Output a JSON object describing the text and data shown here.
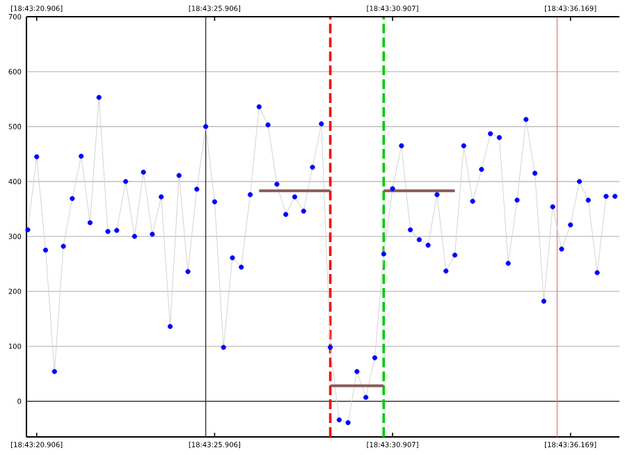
{
  "chart_data": {
    "type": "line",
    "categories": [
      null,
      "[18:43:20.906]",
      null,
      null,
      null,
      null,
      null,
      null,
      null,
      null,
      null,
      null,
      null,
      null,
      null,
      null,
      null,
      null,
      null,
      null,
      null,
      "[18:43:25.906]",
      null,
      null,
      null,
      null,
      null,
      null,
      null,
      null,
      null,
      null,
      null,
      null,
      null,
      null,
      null,
      null,
      null,
      null,
      null,
      "[18:43:30.907]",
      null,
      null,
      null,
      null,
      null,
      null,
      null,
      null,
      null,
      null,
      null,
      null,
      null,
      null,
      null,
      null,
      null,
      null,
      null,
      "[18:43:36.169]",
      null,
      null,
      null,
      null,
      null
    ],
    "ylim": [
      -65,
      700
    ],
    "yticks": [
      0,
      100,
      200,
      300,
      400,
      500,
      600,
      700
    ],
    "grid": "y",
    "series": [
      {
        "color": "#d4d4d4",
        "marker": "none",
        "values": [
          312,
          445,
          275,
          54,
          282,
          369,
          446,
          325,
          553,
          309,
          311,
          400,
          300,
          417,
          304,
          372,
          136,
          411,
          236,
          386,
          500,
          363,
          98,
          261,
          244,
          376,
          536,
          503,
          395,
          340,
          372,
          346,
          426,
          505,
          98,
          -34,
          -39,
          54,
          7,
          79,
          268,
          387,
          465,
          312,
          294,
          284,
          376,
          237,
          266,
          465,
          364,
          422,
          487,
          480,
          251,
          366,
          513,
          415,
          182,
          354,
          277,
          321,
          400,
          366,
          234,
          373,
          373
        ]
      },
      {
        "type": "scatter",
        "color": "#0000ff",
        "marker": "circle",
        "values": [
          312,
          445,
          275,
          54,
          282,
          369,
          446,
          325,
          553,
          309,
          311,
          400,
          300,
          417,
          304,
          372,
          136,
          411,
          236,
          386,
          500,
          363,
          98,
          261,
          244,
          376,
          536,
          503,
          395,
          340,
          372,
          346,
          426,
          505,
          98,
          -34,
          -39,
          54,
          7,
          79,
          268,
          387,
          465,
          312,
          294,
          284,
          376,
          237,
          266,
          465,
          364,
          422,
          487,
          480,
          251,
          366,
          513,
          415,
          182,
          354,
          277,
          321,
          400,
          366,
          234,
          373,
          373
        ]
      },
      {
        "color": "#8b5a5a",
        "marker": "none",
        "values": [
          null,
          null,
          null,
          null,
          null,
          null,
          null,
          null,
          null,
          null,
          null,
          null,
          null,
          null,
          null,
          null,
          null,
          null,
          null,
          null,
          null,
          null,
          null,
          null,
          null,
          null,
          383,
          383,
          383,
          383,
          383,
          383,
          383,
          383,
          383,
          null,
          null,
          null,
          null,
          null,
          null,
          null,
          null,
          null,
          null,
          null,
          null,
          null,
          null,
          null,
          null,
          null,
          null,
          null,
          null,
          null,
          null,
          null,
          null,
          null,
          null,
          null,
          null,
          null,
          null,
          null,
          null
        ]
      },
      {
        "color": "#8b5a5a",
        "marker": "none",
        "values": [
          null,
          null,
          null,
          null,
          null,
          null,
          null,
          null,
          null,
          null,
          null,
          null,
          null,
          null,
          null,
          null,
          null,
          null,
          null,
          null,
          null,
          null,
          null,
          null,
          null,
          null,
          null,
          null,
          null,
          null,
          null,
          null,
          null,
          null,
          28,
          28,
          28,
          28,
          28,
          28,
          28,
          null,
          null,
          null,
          null,
          null,
          null,
          null,
          null,
          null,
          null,
          null,
          null,
          null,
          null,
          null,
          null,
          null,
          null,
          null,
          null,
          null,
          null,
          null,
          null,
          null,
          null
        ]
      },
      {
        "color": "#8b5a5a",
        "marker": "none",
        "values": [
          null,
          null,
          null,
          null,
          null,
          null,
          null,
          null,
          null,
          null,
          null,
          null,
          null,
          null,
          null,
          null,
          null,
          null,
          null,
          null,
          null,
          null,
          null,
          null,
          null,
          null,
          null,
          null,
          null,
          null,
          null,
          null,
          null,
          null,
          null,
          null,
          null,
          null,
          null,
          null,
          383,
          383,
          383,
          383,
          383,
          383,
          383,
          383,
          383,
          null,
          null,
          null,
          null,
          null,
          null,
          null,
          null,
          null,
          null,
          null,
          null,
          null,
          null,
          null,
          null,
          null,
          null
        ]
      }
    ],
    "ref_lines": [
      {
        "axis": "y",
        "value": 0,
        "color": "#404040",
        "line_style": "solid"
      }
    ]
  }
}
